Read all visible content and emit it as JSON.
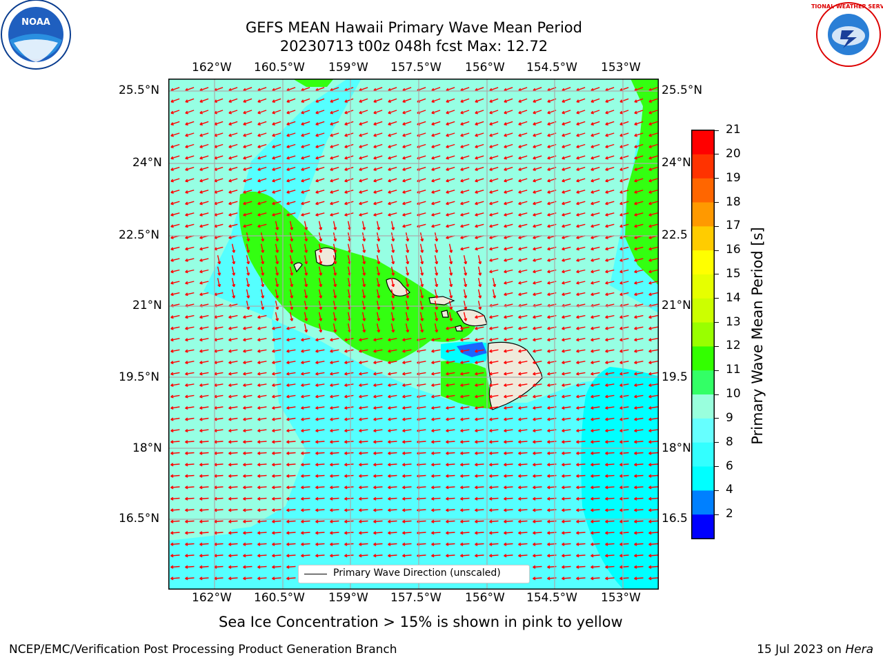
{
  "title_line1": "GEFS MEAN Hawaii Primary Wave Mean Period",
  "title_line2": "20230713 t00z 048h fcst   Max: 12.72",
  "lon_ticks": [
    "162°W",
    "160.5°W",
    "159°W",
    "157.5°W",
    "156°W",
    "154.5°W",
    "153°W"
  ],
  "lat_ticks_left": [
    "25.5°N",
    "24°N",
    "22.5°N",
    "21°N",
    "19.5°N",
    "18°N",
    "16.5°N"
  ],
  "lat_ticks_right": [
    "25.5°N",
    "24°N",
    "22.5",
    "21°N",
    "19.5",
    "18°N",
    "16.5"
  ],
  "legend_label": "Primary Wave Direction (unscaled)",
  "colorbar": {
    "label": "Primary Wave Mean Period [s]",
    "ticks": [
      "21",
      "20",
      "19",
      "18",
      "17",
      "16",
      "15",
      "14",
      "13",
      "12",
      "11",
      "10",
      "9",
      "8",
      "6",
      "4",
      "2"
    ],
    "colors_top_to_bottom": [
      "#ff0000",
      "#ff3300",
      "#ff6600",
      "#ff9900",
      "#ffcc00",
      "#ffff00",
      "#e6ff00",
      "#ccff00",
      "#99ff00",
      "#33ff00",
      "#33ff66",
      "#99ffdd",
      "#66ffff",
      "#33ffff",
      "#00ffff",
      "#0080ff",
      "#0000ff"
    ]
  },
  "map_colors": {
    "sea_base": "#55ffff",
    "light_band": "#96ffe3",
    "green_band": "#33ff11",
    "deep_cyan": "#00ffff",
    "blue_patch": "#1a66ff",
    "land": "#efeadb",
    "arrows": "#ff0000"
  },
  "note": "Sea Ice Concentration > 15% is shown in pink to yellow",
  "footer_left": "NCEP/EMC/Verification Post Processing Product Generation Branch",
  "footer_right_prefix": "15 Jul 2023 on",
  "footer_right_host": "Hera",
  "logo_left": "NOAA",
  "logo_right": "NATIONAL WEATHER SERVICE"
}
